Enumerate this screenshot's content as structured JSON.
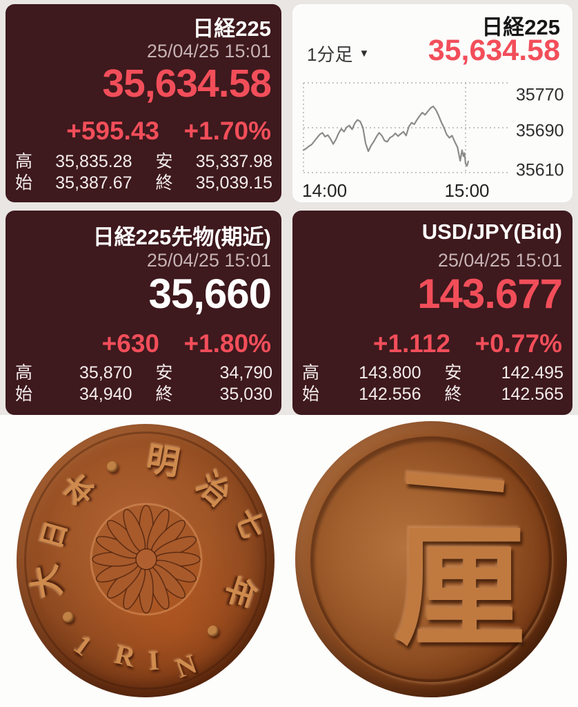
{
  "colors": {
    "page_bg": "#e9e6e3",
    "panel_bg": "#3e191d",
    "red": "#f24e5a",
    "white_text": "#ffffff",
    "date_text": "#c6b2b5",
    "stats_text": "#f3ecec",
    "chart_panel_bg": "#fcfcfb",
    "chart_line": "#8b8b8b",
    "grid": "#b3b0ad",
    "dark_text": "#161616",
    "coin_bg": "#fdfdfc"
  },
  "quotes": {
    "nikkei": {
      "title": "日経225",
      "datetime": "25/04/25 15:01",
      "price": "35,634.58",
      "change": "+595.43",
      "change_pct": "+1.70%",
      "high_label": "高",
      "high": "35,835.28",
      "low_label": "安",
      "low": "35,337.98",
      "open_label": "始",
      "open": "35,387.67",
      "close_label": "終",
      "close": "35,039.15"
    },
    "futures": {
      "title": "日経225先物(期近)",
      "datetime": "25/04/25 15:01",
      "price": "35,660",
      "change": "+630",
      "change_pct": "+1.80%",
      "high_label": "高",
      "high": "35,870",
      "low_label": "安",
      "low": "34,790",
      "open_label": "始",
      "open": "34,940",
      "close_label": "終",
      "close": "35,030"
    },
    "usdjpy": {
      "title": "USD/JPY(Bid)",
      "datetime": "25/04/25 15:01",
      "price": "143.677",
      "change": "+1.112",
      "change_pct": "+0.77%",
      "high_label": "高",
      "high": "143.800",
      "low_label": "安",
      "low": "142.495",
      "open_label": "始",
      "open": "142.556",
      "close_label": "終",
      "close": "142.565"
    }
  },
  "chart_panel": {
    "title": "日経225",
    "interval_label": "1分足",
    "dropdown_icon": "▼",
    "price": "35,634.58"
  },
  "chart_data": {
    "type": "line",
    "title": "日経225 1分足 intraday",
    "x_ticks": [
      "14:00",
      "15:00"
    ],
    "y_ticks": [
      35610,
      35690,
      35770
    ],
    "ylim": [
      35610,
      35770
    ],
    "x_minutes": [
      0,
      1,
      2,
      3,
      4,
      5,
      6,
      7,
      8,
      9,
      10,
      11,
      12,
      13,
      14,
      15,
      16,
      17,
      18,
      19,
      20,
      21,
      22,
      23,
      24,
      25,
      26,
      27,
      28,
      29,
      30,
      31,
      32,
      33,
      34,
      35,
      36,
      37,
      38,
      39,
      40,
      41,
      42,
      43,
      44,
      45,
      46,
      47,
      48,
      49,
      50,
      51,
      52,
      53,
      54,
      55,
      56,
      57,
      58,
      58.7,
      59.2,
      59.6,
      60,
      60.5,
      61
    ],
    "values": [
      35650,
      35653,
      35657,
      35660,
      35666,
      35672,
      35678,
      35681,
      35674,
      35677,
      35670,
      35661,
      35669,
      35680,
      35688,
      35683,
      35691,
      35694,
      35687,
      35698,
      35704,
      35701,
      35690,
      35662,
      35648,
      35658,
      35665,
      35674,
      35681,
      35676,
      35667,
      35665,
      35672,
      35675,
      35680,
      35675,
      35679,
      35683,
      35676,
      35692,
      35699,
      35696,
      35704,
      35711,
      35717,
      35713,
      35719,
      35725,
      35728,
      35722,
      35712,
      35700,
      35690,
      35678,
      35672,
      35676,
      35665,
      35655,
      35631,
      35650,
      35639,
      35645,
      35626,
      35622,
      35630
    ],
    "line_color": "#8b8b8b",
    "grid": "dotted",
    "legend": "none"
  },
  "coins": {
    "left": {
      "legend_left": "大日本",
      "legend_right": "明治七年",
      "denomination": "1 RIN",
      "separator_dots": 3
    },
    "right": {
      "value_kanji": "一厘"
    }
  }
}
